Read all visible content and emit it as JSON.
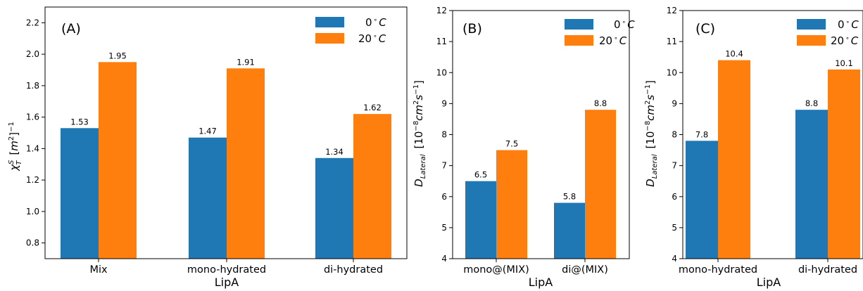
{
  "chart_data": [
    {
      "type": "bar",
      "panel_label": "(A)",
      "categories": [
        "Mix",
        "mono-hydrated",
        "di-hydrated"
      ],
      "series": [
        {
          "name": "0 °C",
          "name_base": "0",
          "name_unit": "C",
          "color": "#1f77b4",
          "values": [
            1.53,
            1.47,
            1.34
          ],
          "labels": [
            "1.53",
            "1.47",
            "1.34"
          ]
        },
        {
          "name": "20 °C",
          "name_base": "20",
          "name_unit": "C",
          "color": "#ff7f0e",
          "values": [
            1.95,
            1.91,
            1.62
          ],
          "labels": [
            "1.95",
            "1.91",
            "1.62"
          ]
        }
      ],
      "xlabel": "LipA",
      "ylabel": "χ_T^S [m^2]^-1",
      "ylabel_parts": {
        "sym": "χ",
        "sub": "T",
        "sup": "S",
        "bracket_open": "[",
        "m": "m",
        "m_sup": "2",
        "bracket_close": "]",
        "minus_one": "−1"
      },
      "ylim": [
        0.7,
        2.3
      ],
      "yticks": [
        0.8,
        1.0,
        1.2,
        1.4,
        1.6,
        1.8,
        2.0,
        2.2
      ],
      "ytick_labels": [
        "0.8",
        "1.0",
        "1.2",
        "1.4",
        "1.6",
        "1.8",
        "2.0",
        "2.2"
      ],
      "legend": "top-right",
      "grid": false
    },
    {
      "type": "bar",
      "panel_label": "(B)",
      "categories": [
        "mono@(MIX)",
        "di@(MIX)"
      ],
      "series": [
        {
          "name": "0 °C",
          "name_base": "0",
          "name_unit": "C",
          "color": "#1f77b4",
          "values": [
            6.5,
            5.8
          ],
          "labels": [
            "6.5",
            "5.8"
          ]
        },
        {
          "name": "20 °C",
          "name_base": "20",
          "name_unit": "C",
          "color": "#ff7f0e",
          "values": [
            7.5,
            8.8
          ],
          "labels": [
            "7.5",
            "8.8"
          ]
        }
      ],
      "xlabel": "LipA",
      "ylabel": "D_Lateral [10^-8 cm^2 s^-1]",
      "ylabel_parts": {
        "sym": "D",
        "sub": "Lateral",
        "open": "[10",
        "e1": "−8",
        "cm": "cm",
        "e2": "2",
        "s": "s",
        "e3": "−1",
        "close": "]"
      },
      "ylim": [
        4,
        12
      ],
      "yticks": [
        4,
        5,
        6,
        7,
        8,
        9,
        10,
        11,
        12
      ],
      "ytick_labels": [
        "4",
        "5",
        "6",
        "7",
        "8",
        "9",
        "10",
        "11",
        "12"
      ],
      "legend": "top-right",
      "grid": false
    },
    {
      "type": "bar",
      "panel_label": "(C)",
      "categories": [
        "mono-hydrated",
        "di-hydrated"
      ],
      "series": [
        {
          "name": "0 °C",
          "name_base": "0",
          "name_unit": "C",
          "color": "#1f77b4",
          "values": [
            7.8,
            8.8
          ],
          "labels": [
            "7.8",
            "8.8"
          ]
        },
        {
          "name": "20 °C",
          "name_base": "20",
          "name_unit": "C",
          "color": "#ff7f0e",
          "values": [
            10.4,
            10.1
          ],
          "labels": [
            "10.4",
            "10.1"
          ]
        }
      ],
      "xlabel": "LipA",
      "ylabel": "D_Lateral [10^-8 cm^2 s^-1]",
      "ylabel_parts": {
        "sym": "D",
        "sub": "Lateral",
        "open": "[10",
        "e1": "−8",
        "cm": "cm",
        "e2": "2",
        "s": "s",
        "e3": "−1",
        "close": "]"
      },
      "ylim": [
        4,
        12
      ],
      "yticks": [
        4,
        5,
        6,
        7,
        8,
        9,
        10,
        11,
        12
      ],
      "ytick_labels": [
        "4",
        "5",
        "6",
        "7",
        "8",
        "9",
        "10",
        "11",
        "12"
      ],
      "legend": "top-right",
      "grid": false
    }
  ]
}
